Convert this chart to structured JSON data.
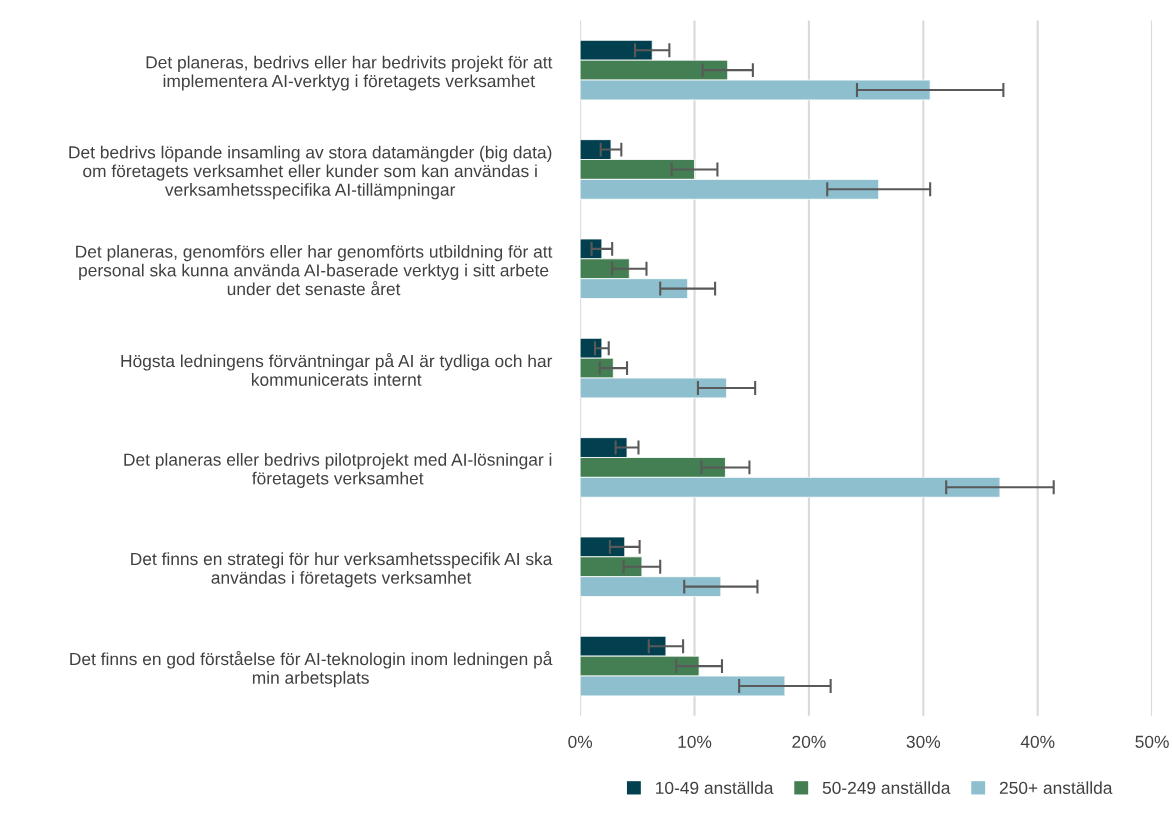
{
  "chart_data": {
    "type": "bar",
    "orientation": "horizontal",
    "categories": [
      "Det planeras, bedrivs eller har bedrivits projekt för att\nimplementera AI-verktyg i företagets verksamhet",
      "Det bedrivs löpande insamling av stora datamängder (big data)\nom företagets verksamhet eller kunder som kan användas i\nverksamhetsspecifika AI-tillämpningar",
      "Det planeras, genomförs eller har genomförts utbildning för att\npersonal ska kunna använda AI-baserade verktyg i sitt arbete\nunder det senaste året",
      "Högsta ledningens förväntningar på AI är tydliga och har\nkommunicerats internt",
      "Det planeras eller bedrivs pilotprojekt med AI-lösningar i\nföretagets verksamhet",
      "Det finns en strategi för hur verksamhetsspecifik AI ska\nanvändas i företagets verksamhet",
      "Det finns en god förståelse för AI-teknologin inom ledningen på\nmin arbetsplats"
    ],
    "series": [
      {
        "name": "10-49 anställda",
        "color": "#02404f",
        "values": [
          6.3,
          2.7,
          1.9,
          1.9,
          4.1,
          3.9,
          7.5
        ],
        "errors": [
          1.5,
          0.9,
          0.9,
          0.6,
          1.0,
          1.3,
          1.5
        ]
      },
      {
        "name": "50-249 anställda",
        "color": "#437f52",
        "values": [
          12.9,
          10.0,
          4.3,
          2.9,
          12.7,
          5.4,
          10.4
        ],
        "errors": [
          2.2,
          2.0,
          1.5,
          1.2,
          2.1,
          1.6,
          2.0
        ]
      },
      {
        "name": "250+ anställda",
        "color": "#8dbfce",
        "values": [
          30.6,
          26.1,
          9.4,
          12.8,
          36.7,
          12.3,
          17.9
        ],
        "errors": [
          6.4,
          4.5,
          2.4,
          2.5,
          4.7,
          3.2,
          4.0
        ]
      }
    ],
    "xlim": [
      0,
      50
    ],
    "xticks": [
      {
        "value": 0,
        "label": "0%"
      },
      {
        "value": 10,
        "label": "10%"
      },
      {
        "value": 20,
        "label": "20%"
      },
      {
        "value": 30,
        "label": "30%"
      },
      {
        "value": 40,
        "label": "40%"
      },
      {
        "value": 50,
        "label": "50%"
      }
    ],
    "grid": "x",
    "legend": "bottom"
  }
}
